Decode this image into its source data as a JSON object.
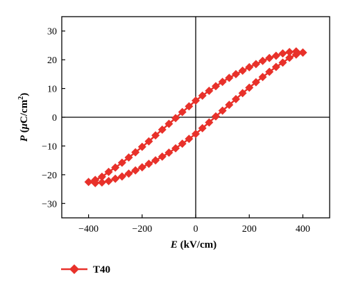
{
  "chart_data": {
    "type": "line",
    "xlabel": {
      "italic": "E",
      "rest": " (kV/cm)"
    },
    "ylabel": {
      "italic": "P",
      "open": " (",
      "mu": "μ",
      "unit": "C/cm",
      "sup": "2",
      "close": ")"
    },
    "xlim": [
      -500,
      500
    ],
    "ylim": [
      -35,
      35
    ],
    "xticks": [
      -400,
      -200,
      0,
      200,
      400
    ],
    "yticks": [
      -30,
      -20,
      -10,
      0,
      10,
      20,
      30
    ],
    "xtick_labels": [
      "−400",
      "−200",
      "0",
      "200",
      "400"
    ],
    "ytick_labels": [
      "−30",
      "−20",
      "−10",
      "0",
      "10",
      "20",
      "30"
    ],
    "zero_lines": true,
    "grid": false,
    "legend_position": "bottom-left",
    "series": [
      {
        "name": "T40",
        "color": "#e8312a",
        "marker": "diamond",
        "x": [
          400,
          375,
          350,
          325,
          300,
          275,
          250,
          225,
          200,
          175,
          150,
          125,
          100,
          75,
          50,
          25,
          0,
          -25,
          -50,
          -75,
          -100,
          -125,
          -150,
          -175,
          -200,
          -225,
          -250,
          -275,
          -300,
          -325,
          -350,
          -375,
          -400,
          -375,
          -350,
          -325,
          -300,
          -275,
          -250,
          -225,
          -200,
          -175,
          -150,
          -125,
          -100,
          -75,
          -50,
          -25,
          0,
          25,
          50,
          75,
          100,
          125,
          150,
          175,
          200,
          225,
          250,
          275,
          300,
          325,
          350,
          375,
          400
        ],
        "y": [
          22.5,
          22.9,
          22.7,
          22.2,
          21.4,
          20.6,
          19.6,
          18.5,
          17.4,
          16.2,
          15.0,
          13.7,
          12.3,
          10.8,
          9.2,
          7.5,
          5.8,
          3.8,
          1.8,
          -0.3,
          -2.3,
          -4.3,
          -6.3,
          -8.4,
          -10.3,
          -12.2,
          -14.0,
          -15.8,
          -17.5,
          -19.0,
          -20.7,
          -21.8,
          -22.5,
          -22.9,
          -22.7,
          -22.2,
          -21.4,
          -20.6,
          -19.6,
          -18.5,
          -17.4,
          -16.2,
          -15.0,
          -13.7,
          -12.3,
          -10.8,
          -9.2,
          -7.5,
          -5.8,
          -3.8,
          -1.8,
          0.3,
          2.3,
          4.3,
          6.3,
          8.4,
          10.3,
          12.2,
          14.0,
          15.8,
          17.5,
          19.0,
          20.7,
          21.8,
          22.5
        ]
      }
    ]
  }
}
